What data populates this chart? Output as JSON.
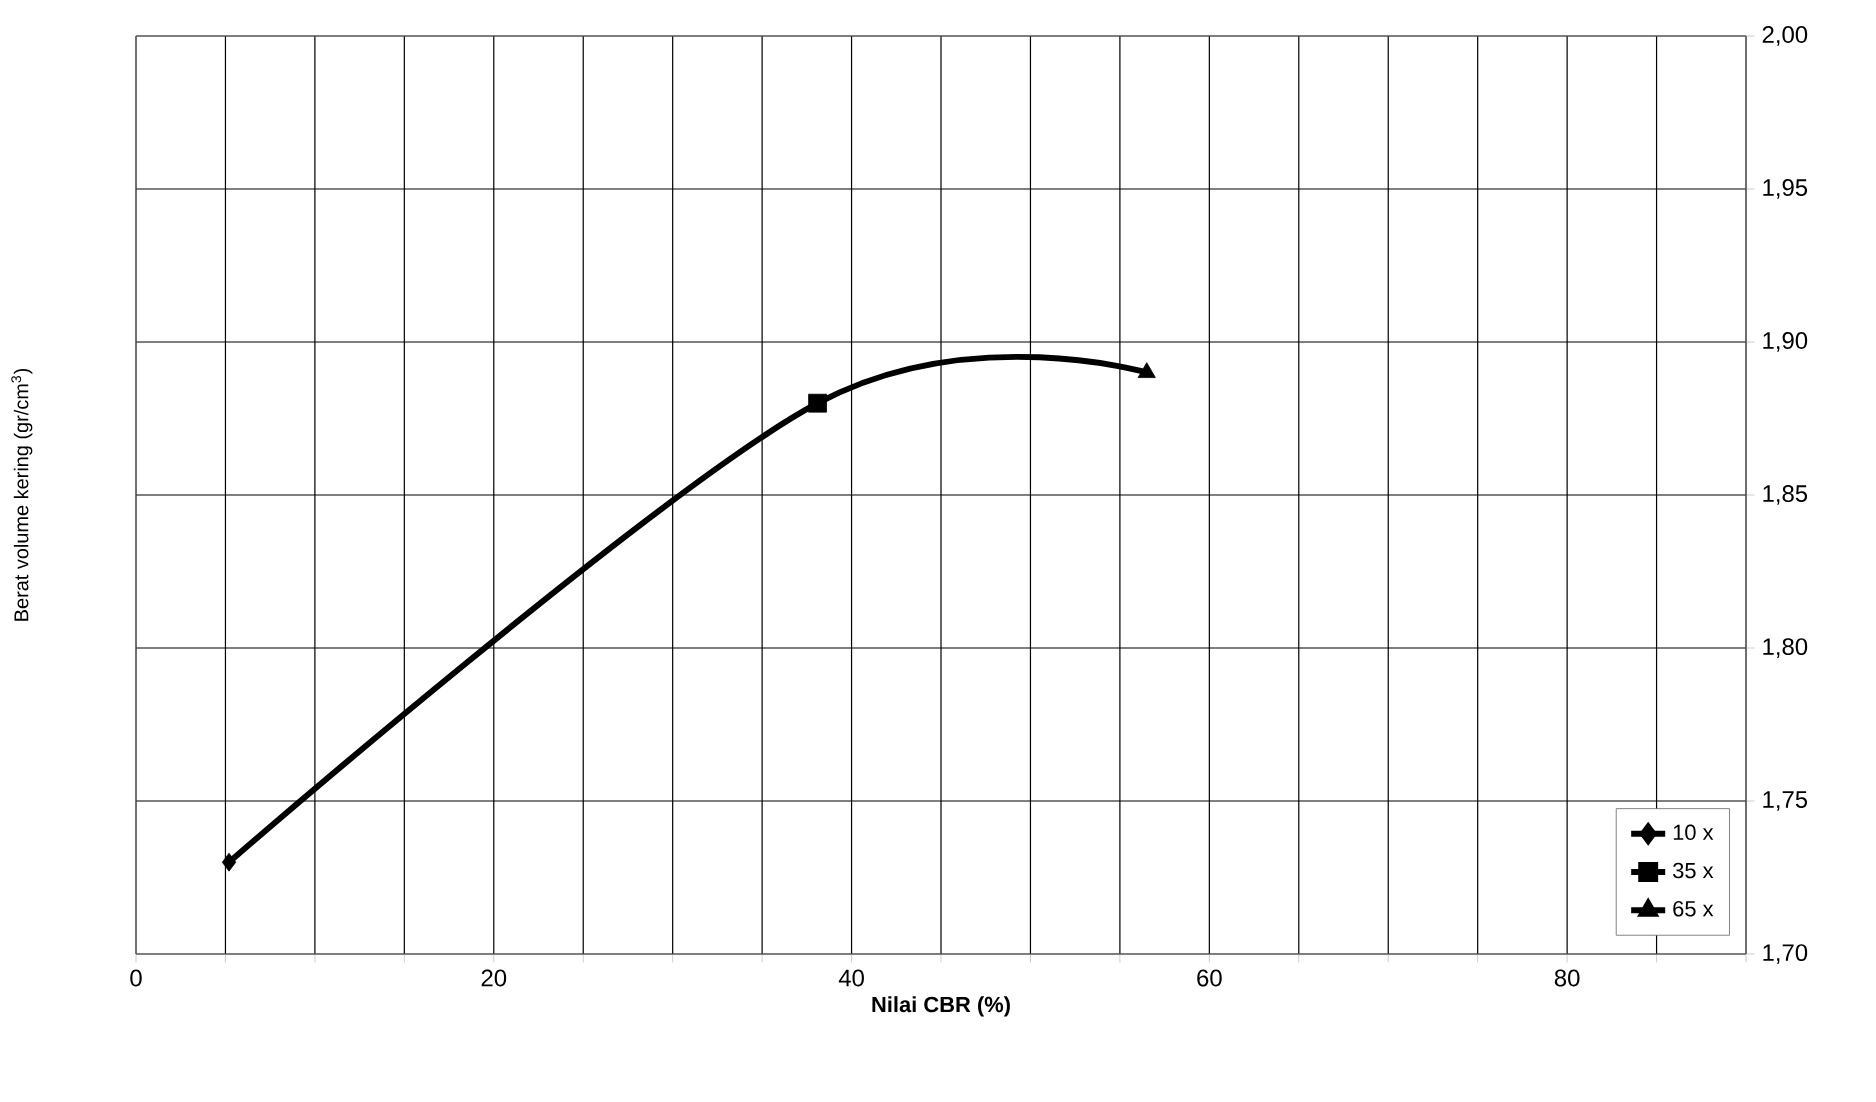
{
  "chart_data": {
    "type": "scatter",
    "xlabel": "Nilai CBR (%)",
    "ylabel": "Berat volume kering (gr/cm$^{3}$)",
    "xlim": [
      0,
      90
    ],
    "ylim": [
      1.7,
      2.0
    ],
    "xticks": [
      0,
      {
        "value": 5,
        "label": null
      },
      {
        "value": 10,
        "label": null
      },
      {
        "value": 15,
        "label": null
      },
      20,
      {
        "value": 25,
        "label": null
      },
      {
        "value": 30,
        "label": null
      },
      {
        "value": 35,
        "label": null
      },
      40,
      {
        "value": 45,
        "label": null
      },
      {
        "value": 50,
        "label": null
      },
      {
        "value": 55,
        "label": null
      },
      60,
      {
        "value": 65,
        "label": null
      },
      {
        "value": 70,
        "label": null
      },
      {
        "value": 75,
        "label": null
      },
      80,
      {
        "value": 85,
        "label": null
      },
      {
        "value": 90,
        "label": null
      }
    ],
    "yticks": [
      {
        "value": 1.7,
        "label": "1,70"
      },
      {
        "value": 1.75,
        "label": "1,75"
      },
      {
        "value": 1.8,
        "label": "1,80"
      },
      {
        "value": 1.85,
        "label": "1,85"
      },
      {
        "value": 1.9,
        "label": "1,90"
      },
      {
        "value": 1.95,
        "label": "1,95"
      },
      {
        "value": 2.0,
        "label": "2,00"
      }
    ],
    "grid": true,
    "legend": "bottom right",
    "series": [
      {
        "type": "line",
        "color": "#000000",
        "x": [
          5.2,
          38.1,
          56.5
        ],
        "values": [
          1.73,
          1.88,
          1.89
        ]
      },
      {
        "name": "10 x",
        "color": "#000000",
        "marker": "diamond",
        "x": [
          5.2
        ],
        "values": [
          1.73
        ]
      },
      {
        "name": "35 x",
        "color": "#000000",
        "marker": "square",
        "x": [
          38.1
        ],
        "values": [
          1.88
        ]
      },
      {
        "name": "65 x",
        "color": "#000000",
        "marker": "triangle",
        "x": [
          56.5
        ],
        "values": [
          1.89
        ]
      }
    ]
  }
}
